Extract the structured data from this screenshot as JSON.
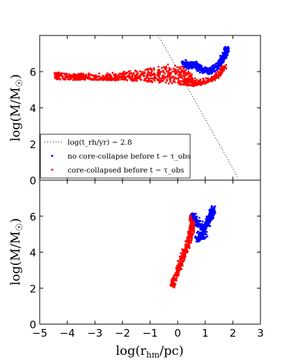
{
  "chart_data": [
    {
      "type": "scatter",
      "xlim": [
        -5,
        3
      ],
      "ylim": [
        0,
        8
      ],
      "yticks": [
        "0",
        "2",
        "4",
        "6"
      ],
      "ylabel": "log(M/M☉)",
      "grid": false,
      "legend_position": "lower-left",
      "legend": [
        {
          "label": "log(t_rh/yr) − 2.8",
          "style": "dotted-line",
          "color": "#000000"
        },
        {
          "label": "no core-collapse before t − τ_obs",
          "style": "points",
          "color": "#0000ff"
        },
        {
          "label": "core-collapsed before t − τ_obs",
          "style": "points",
          "color": "#ff0000"
        }
      ],
      "series": [
        {
          "color": "#ff0000",
          "points": [
            [
              -4.4,
              5.8
            ],
            [
              -4.35,
              5.75
            ],
            [
              -3.75,
              5.7
            ],
            [
              -3.5,
              5.72
            ],
            [
              -3.0,
              5.75
            ],
            [
              -2.5,
              5.8
            ],
            [
              -2.0,
              5.9
            ],
            [
              -1.5,
              6.0
            ],
            [
              -1.0,
              6.15
            ],
            [
              -0.5,
              6.25
            ],
            [
              0.0,
              6.25
            ],
            [
              0.3,
              6.1
            ],
            [
              0.5,
              5.7
            ],
            [
              0.8,
              5.4
            ],
            [
              1.2,
              5.6
            ],
            [
              1.5,
              5.9
            ],
            [
              1.7,
              6.3
            ]
          ],
          "lower_envelope": [
            [
              -3.2,
              5.55
            ],
            [
              -2.0,
              5.5
            ],
            [
              -1.0,
              5.42
            ],
            [
              0.0,
              5.3
            ],
            [
              0.6,
              5.2
            ],
            [
              1.0,
              5.35
            ],
            [
              1.5,
              5.75
            ],
            [
              1.75,
              6.3
            ]
          ]
        },
        {
          "color": "#0000ff",
          "points": [
            [
              0.2,
              6.5
            ],
            [
              0.4,
              6.3
            ],
            [
              0.6,
              6.4
            ],
            [
              0.9,
              6.1
            ],
            [
              1.2,
              6.0
            ],
            [
              1.5,
              6.4
            ],
            [
              1.7,
              6.9
            ],
            [
              1.8,
              7.3
            ]
          ]
        }
      ],
      "reference_line": {
        "name": "log(t_rh/yr) − 2.8",
        "x": [
          -0.7,
          2.2
        ],
        "y": [
          8.0,
          0.1
        ]
      }
    },
    {
      "type": "scatter",
      "xlim": [
        -5,
        3
      ],
      "ylim": [
        0,
        8
      ],
      "xticks": [
        "−5",
        "−4",
        "−3",
        "−2",
        "−1",
        "0",
        "1",
        "2",
        "3"
      ],
      "yticks": [
        "0",
        "2",
        "4",
        "6"
      ],
      "xlabel": "log(r_hm/pc)",
      "ylabel": "log(M/M☉)",
      "grid": false,
      "series": [
        {
          "color": "#ff0000",
          "points": [
            [
              -0.2,
              2.1
            ],
            [
              0.0,
              3.0
            ],
            [
              0.2,
              3.8
            ],
            [
              0.4,
              4.6
            ],
            [
              0.5,
              5.2
            ],
            [
              0.55,
              5.7
            ],
            [
              0.5,
              6.0
            ]
          ]
        },
        {
          "color": "#0000ff",
          "points": [
            [
              0.55,
              6.1
            ],
            [
              0.8,
              5.5
            ],
            [
              1.0,
              5.3
            ],
            [
              1.2,
              6.0
            ],
            [
              1.3,
              6.4
            ],
            [
              0.7,
              4.7
            ],
            [
              1.0,
              5.0
            ]
          ]
        }
      ]
    }
  ]
}
